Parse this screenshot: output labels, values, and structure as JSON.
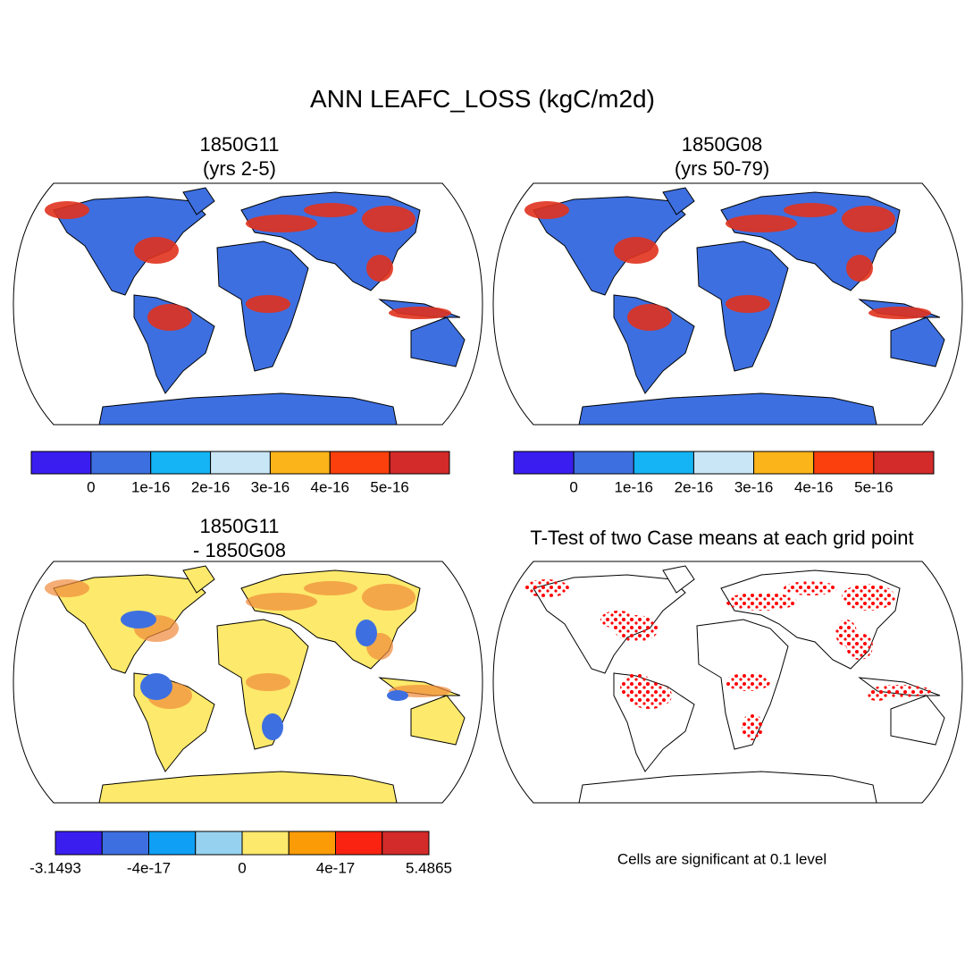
{
  "title": "ANN LEAFC_LOSS (kgC/m2d)",
  "panels": [
    {
      "title": [
        "1850G11",
        "(yrs 2-5)"
      ]
    },
    {
      "title": [
        "1850G08",
        "(yrs 50-79)"
      ]
    },
    {
      "title": [
        "1850G11",
        "- 1850G08"
      ]
    },
    {
      "title": [
        "T-Test of two Case means at each grid point"
      ]
    }
  ],
  "colorbars": [
    {
      "colors": [
        "#3a1ef0",
        "#3d6fe0",
        "#14b4f5",
        "#c8e6f5",
        "#fbb419",
        "#fc400d",
        "#d32a2a"
      ],
      "labels": [
        null,
        "0",
        "1e-16",
        "2e-16",
        "3e-16",
        "4e-16",
        "5e-16",
        null
      ]
    },
    {
      "colors": [
        "#3a1ef0",
        "#3d6fe0",
        "#14b4f5",
        "#c8e6f5",
        "#fbb419",
        "#fc400d",
        "#d32a2a"
      ],
      "labels": [
        null,
        "0",
        "1e-16",
        "2e-16",
        "3e-16",
        "4e-16",
        "5e-16",
        null
      ]
    },
    {
      "colors": [
        "#3a1ef0",
        "#3d6fe0",
        "#0fa0f5",
        "#96d2f0",
        "#fde96b",
        "#fb9b05",
        "#fa2311",
        "#d32a2a"
      ],
      "labels": [
        "-3.1493",
        null,
        "-4e-17",
        null,
        "0",
        null,
        "4e-17",
        null,
        "5.4865"
      ]
    }
  ],
  "note": "Cells are significant at 0.1 level"
}
